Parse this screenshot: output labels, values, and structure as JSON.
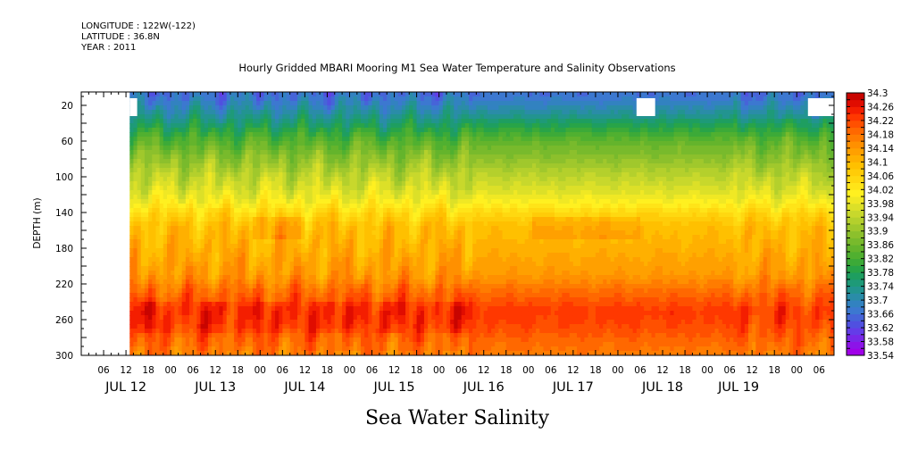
{
  "header": {
    "longitude": "LONGITUDE : 122W(-122)",
    "latitude": "LATITUDE : 36.8N",
    "year": "YEAR : 2011"
  },
  "chart_data": {
    "type": "heatmap",
    "title": "Hourly Gridded MBARI Mooring M1 Sea Water Temperature and Salinity Observations",
    "xlabel": "Sea Water Salinity",
    "ylabel": "DEPTH (m)",
    "x_hour_ticks": [
      "06",
      "12",
      "18",
      "00",
      "06",
      "12",
      "18",
      "00",
      "06",
      "12",
      "18",
      "00",
      "06",
      "12",
      "18",
      "00",
      "06",
      "12",
      "18",
      "00",
      "06",
      "12",
      "18",
      "00",
      "06",
      "12",
      "18",
      "00",
      "06",
      "12",
      "18",
      "00",
      "06"
    ],
    "x_day_labels": [
      "JUL 12",
      "JUL 13",
      "JUL 14",
      "JUL 15",
      "JUL 16",
      "JUL 17",
      "JUL 18",
      "JUL 19"
    ],
    "x_range_hours": [
      0,
      202
    ],
    "data_start_hour": 13,
    "y_ticks": [
      20,
      60,
      100,
      140,
      180,
      220,
      260,
      300
    ],
    "y_range": [
      5,
      300
    ],
    "colorbar_levels": [
      33.54,
      33.56,
      33.58,
      33.6,
      33.62,
      33.64,
      33.66,
      33.68,
      33.7,
      33.72,
      33.74,
      33.76,
      33.78,
      33.8,
      33.82,
      33.84,
      33.86,
      33.88,
      33.9,
      33.92,
      33.94,
      33.96,
      33.98,
      34.0,
      34.02,
      34.04,
      34.06,
      34.08,
      34.1,
      34.12,
      34.14,
      34.16,
      34.18,
      34.2,
      34.22,
      34.24,
      34.26,
      34.28,
      34.3
    ],
    "colorbar_labels": [
      "33.54",
      "33.58",
      "33.62",
      "33.66",
      "33.7",
      "33.74",
      "33.78",
      "33.82",
      "33.86",
      "33.9",
      "33.94",
      "33.98",
      "34.02",
      "34.06",
      "34.1",
      "34.14",
      "34.18",
      "34.22",
      "34.26",
      "34.3"
    ],
    "colorbar_colors": [
      "#a000e8",
      "#8c14e8",
      "#7828e8",
      "#643ce8",
      "#5050e0",
      "#4664d8",
      "#3c78d0",
      "#3282c0",
      "#2a8ca8",
      "#229490",
      "#1e9a78",
      "#1e9e60",
      "#28a448",
      "#3caa38",
      "#50b030",
      "#64b42c",
      "#78ba2c",
      "#8cc02c",
      "#a0c82c",
      "#b4d02c",
      "#c8d82c",
      "#dce028",
      "#f0e824",
      "#fff020",
      "#ffe418",
      "#ffd810",
      "#ffcc08",
      "#ffc000",
      "#ffb000",
      "#ffa000",
      "#ff9000",
      "#ff7c00",
      "#ff6800",
      "#ff5000",
      "#ff3800",
      "#f41e00",
      "#e00c00",
      "#c80400"
    ],
    "depth_profile": [
      {
        "depth": 5,
        "value": 33.66
      },
      {
        "depth": 15,
        "value": 33.68
      },
      {
        "depth": 25,
        "value": 33.71
      },
      {
        "depth": 40,
        "value": 33.76
      },
      {
        "depth": 55,
        "value": 33.82
      },
      {
        "depth": 75,
        "value": 33.88
      },
      {
        "depth": 95,
        "value": 33.93
      },
      {
        "depth": 115,
        "value": 33.97
      },
      {
        "depth": 130,
        "value": 34.01
      },
      {
        "depth": 140,
        "value": 34.05
      },
      {
        "depth": 155,
        "value": 34.09
      },
      {
        "depth": 180,
        "value": 34.11
      },
      {
        "depth": 210,
        "value": 34.14
      },
      {
        "depth": 230,
        "value": 34.19
      },
      {
        "depth": 250,
        "value": 34.23
      },
      {
        "depth": 265,
        "value": 34.22
      },
      {
        "depth": 285,
        "value": 34.19
      },
      {
        "depth": 300,
        "value": 34.17
      }
    ],
    "missing_blocks": [
      {
        "hour_start": 13,
        "hour_end": 15,
        "depth_top": 12,
        "depth_bottom": 32
      },
      {
        "hour_start": 149,
        "hour_end": 154,
        "depth_top": 12,
        "depth_bottom": 32
      },
      {
        "hour_start": 195,
        "hour_end": 202,
        "depth_top": 12,
        "depth_bottom": 32
      }
    ]
  }
}
